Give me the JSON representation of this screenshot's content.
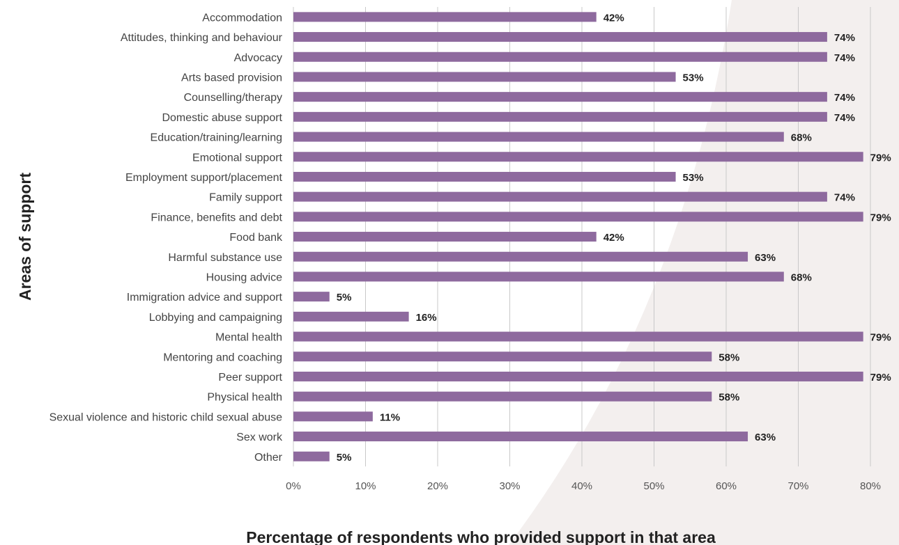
{
  "colors": {
    "bar": "#8e6a9e",
    "grid": "#c8c8c8",
    "background_shape": "#f3efee"
  },
  "chart_data": {
    "type": "bar",
    "orientation": "horizontal",
    "title": "",
    "xlabel": "Percentage of respondents who provided support in that area",
    "ylabel": "Areas of support",
    "xlim": [
      0,
      80
    ],
    "x_ticks": [
      0,
      10,
      20,
      30,
      40,
      50,
      60,
      70,
      80
    ],
    "x_tick_labels": [
      "0%",
      "10%",
      "20%",
      "30%",
      "40%",
      "50%",
      "60%",
      "70%",
      "80%"
    ],
    "grid": true,
    "legend": "none",
    "categories": [
      "Accommodation",
      "Attitudes, thinking and behaviour",
      "Advocacy",
      "Arts based provision",
      "Counselling/therapy",
      "Domestic abuse support",
      "Education/training/learning",
      "Emotional support",
      "Employment support/placement",
      "Family support",
      "Finance, benefits and debt",
      "Food bank",
      "Harmful substance use",
      "Housing advice",
      "Immigration advice and support",
      "Lobbying and campaigning",
      "Mental health",
      "Mentoring and coaching",
      "Peer support",
      "Physical health",
      "Sexual violence and historic child sexual abuse",
      "Sex work",
      "Other"
    ],
    "values": [
      42,
      74,
      74,
      53,
      74,
      74,
      68,
      79,
      53,
      74,
      79,
      42,
      63,
      68,
      5,
      16,
      79,
      58,
      79,
      58,
      11,
      63,
      5
    ],
    "value_labels": [
      "42%",
      "74%",
      "74%",
      "53%",
      "74%",
      "74%",
      "68%",
      "79%",
      "53%",
      "74%",
      "79%",
      "42%",
      "63%",
      "68%",
      "5%",
      "16%",
      "79%",
      "58%",
      "79%",
      "58%",
      "11%",
      "63%",
      "5%"
    ]
  }
}
